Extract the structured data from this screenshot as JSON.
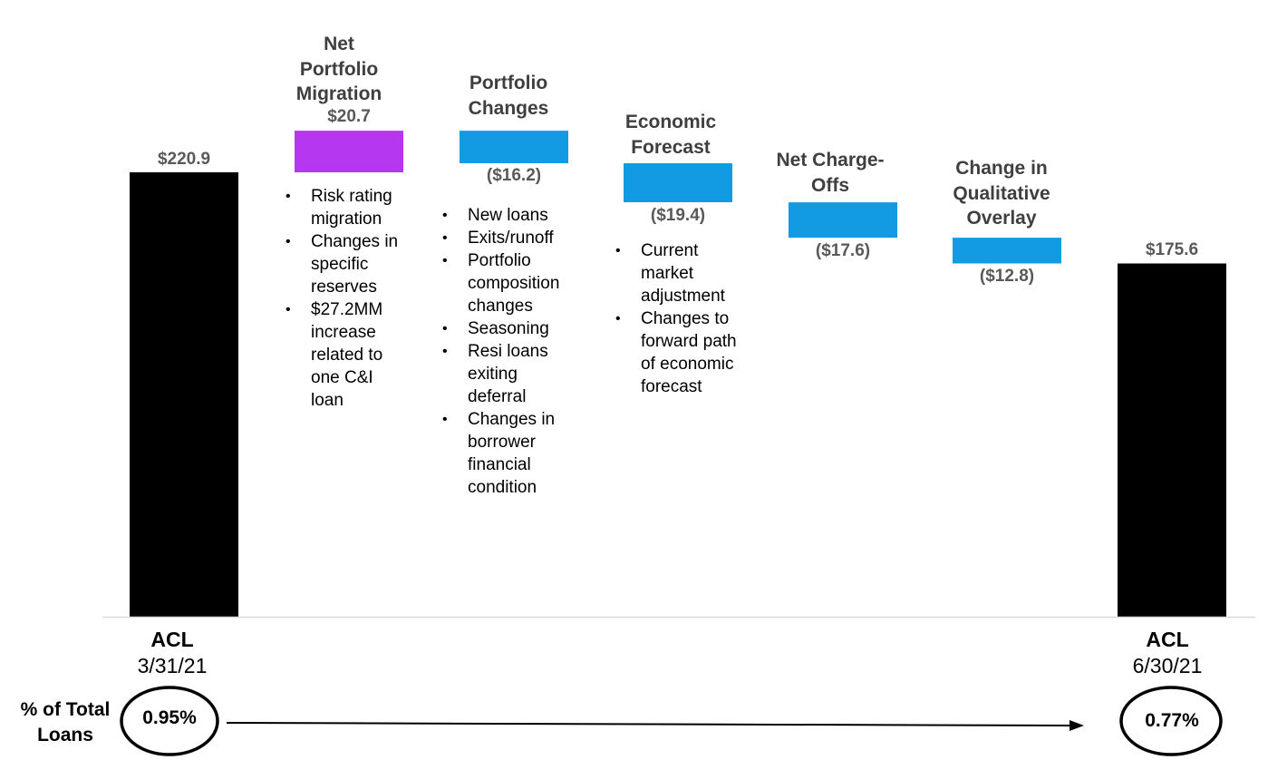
{
  "chart_data": {
    "type": "waterfall",
    "unit": "$",
    "steps": [
      {
        "heading": "",
        "value": 220.9,
        "label": "$220.9",
        "kind": "total",
        "color": "#000000"
      },
      {
        "heading": "Net Portfolio Migration",
        "value": 20.7,
        "label": "$20.7",
        "kind": "delta",
        "color": "#b538f0"
      },
      {
        "heading": "Portfolio Changes",
        "value": -16.2,
        "label": "($16.2)",
        "kind": "delta",
        "color": "#129be3"
      },
      {
        "heading": "Economic Forecast",
        "value": -19.4,
        "label": "($19.4)",
        "kind": "delta",
        "color": "#129be3"
      },
      {
        "heading": "Net Charge-Offs",
        "value": -17.6,
        "label": "($17.6)",
        "kind": "delta",
        "color": "#129be3"
      },
      {
        "heading": "Change in Qualitative Overlay",
        "value": -12.8,
        "label": "($12.8)",
        "kind": "delta",
        "color": "#129be3"
      },
      {
        "heading": "",
        "value": 175.6,
        "label": "$175.6",
        "kind": "total",
        "color": "#000000"
      }
    ],
    "ylim": [
      0,
      245
    ],
    "grid": false,
    "legend": "none"
  },
  "headings": {
    "net_portfolio_migration": [
      "Net",
      "Portfolio",
      "Migration"
    ],
    "portfolio_changes": [
      "Portfolio",
      "Changes"
    ],
    "economic_forecast": [
      "Economic",
      "Forecast"
    ],
    "net_charge_offs": [
      "Net Charge-",
      "Offs"
    ],
    "change_in_qualitative_overlay": [
      "Change in",
      "Qualitative",
      "Overlay"
    ]
  },
  "bullets": {
    "migration": [
      "Risk rating migration",
      "Changes in specific reserves",
      "$27.2MM increase related to one C&I loan"
    ],
    "portfolio": [
      "New loans",
      "Exits/runoff",
      "Portfolio composition changes",
      "Seasoning",
      "Resi loans exiting deferral",
      "Changes in borrower financial condition"
    ],
    "economic": [
      "Current market adjustment",
      "Changes to forward path of economic forecast"
    ]
  },
  "acl_start": {
    "title": "ACL",
    "date": "3/31/21"
  },
  "acl_end": {
    "title": "ACL",
    "date": "6/30/21"
  },
  "pct_total_loans": {
    "label": "% of Total Loans",
    "start": "0.95%",
    "end": "0.77%"
  }
}
